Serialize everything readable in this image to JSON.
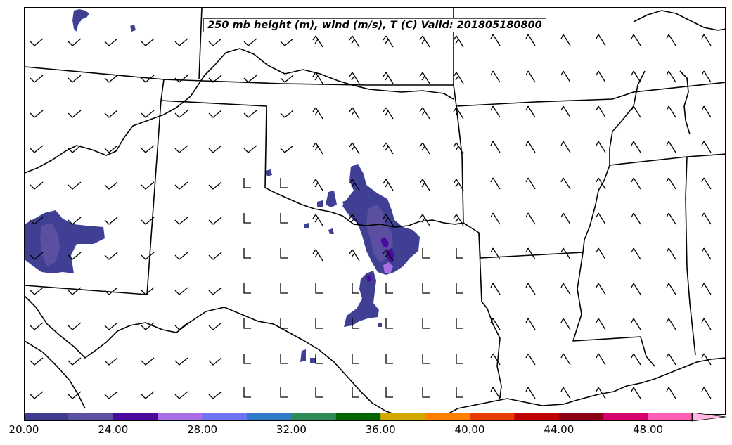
{
  "title": "250 mb height (m), wind (m/s), T (C) Valid: 201805180800",
  "colorbar": {
    "labels": [
      "20.00",
      "24.00",
      "28.00",
      "32.00",
      "36.00",
      "40.00",
      "44.00",
      "48.00"
    ],
    "colors": [
      "#3d3c8f",
      "#5a4fa0",
      "#4b0a9e",
      "#a86fe6",
      "#6f74f4",
      "#2e7bc8",
      "#2e8b57",
      "#006400",
      "#d4a800",
      "#ff7f00",
      "#e83b00",
      "#c00000",
      "#8b0015",
      "#d6006f",
      "#ff5fb4",
      "#ffb8e0"
    ]
  },
  "palette": {
    "fill_main": "#3f3f94",
    "fill_dark": "#4b0a9e",
    "fill_light": "#a86fe6",
    "fill_mid": "#5a4fa0"
  }
}
